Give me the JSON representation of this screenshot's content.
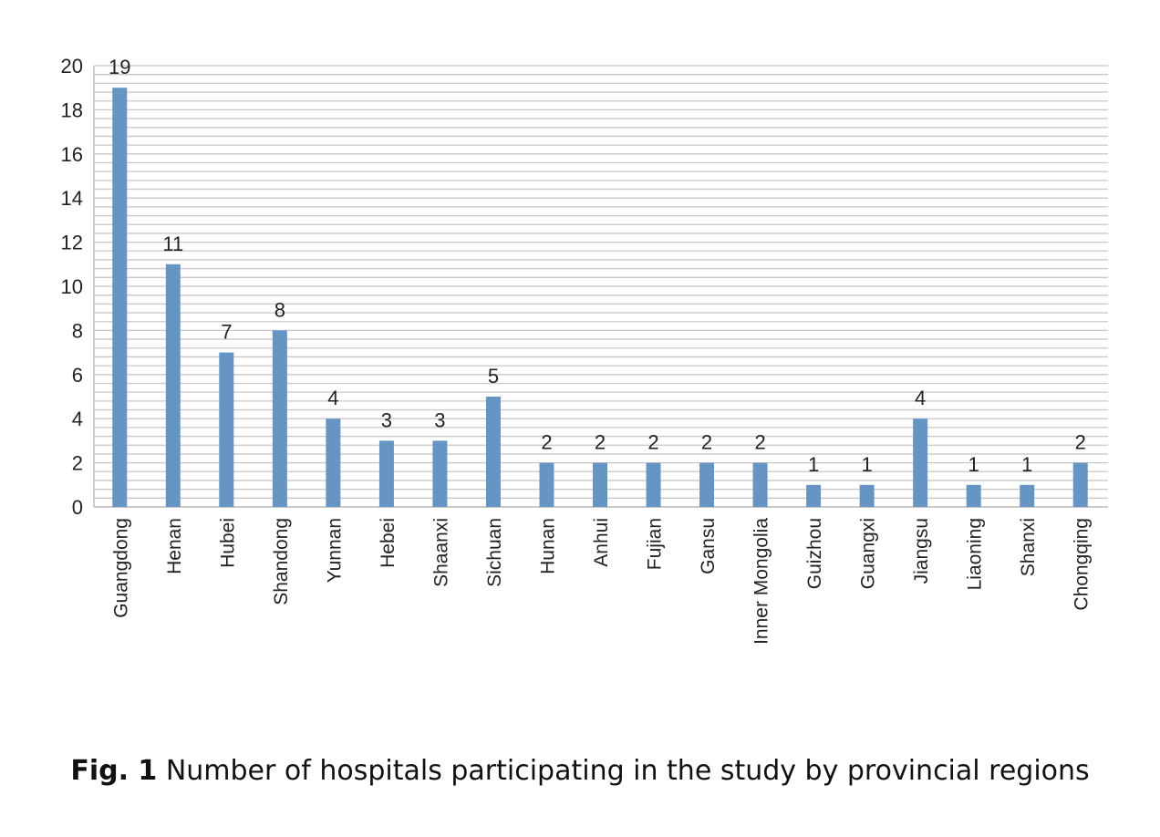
{
  "chart_data": {
    "type": "bar",
    "title": "",
    "xlabel": "",
    "ylabel": "",
    "ylim": [
      0,
      20
    ],
    "yticks": [
      0,
      2,
      4,
      6,
      8,
      10,
      12,
      14,
      16,
      18,
      20
    ],
    "minor_grid_step": 0.4,
    "grid": true,
    "bar_color": "#6694c3",
    "categories": [
      "Guangdong",
      "Henan",
      "Hubei",
      "Shandong",
      "Yunnan",
      "Hebei",
      "Shaanxi",
      "Sichuan",
      "Hunan",
      "Anhui",
      "Fujian",
      "Gansu",
      "Inner Mongolia",
      "Guizhou",
      "Guangxi",
      "Jiangsu",
      "Liaoning",
      "Shanxi",
      "Chongqing"
    ],
    "values": [
      19,
      11,
      7,
      8,
      4,
      3,
      3,
      5,
      2,
      2,
      2,
      2,
      2,
      1,
      1,
      4,
      1,
      1,
      2
    ]
  },
  "caption": {
    "label": "Fig. 1",
    "text": " Number of hospitals participating in the study by provincial regions"
  }
}
